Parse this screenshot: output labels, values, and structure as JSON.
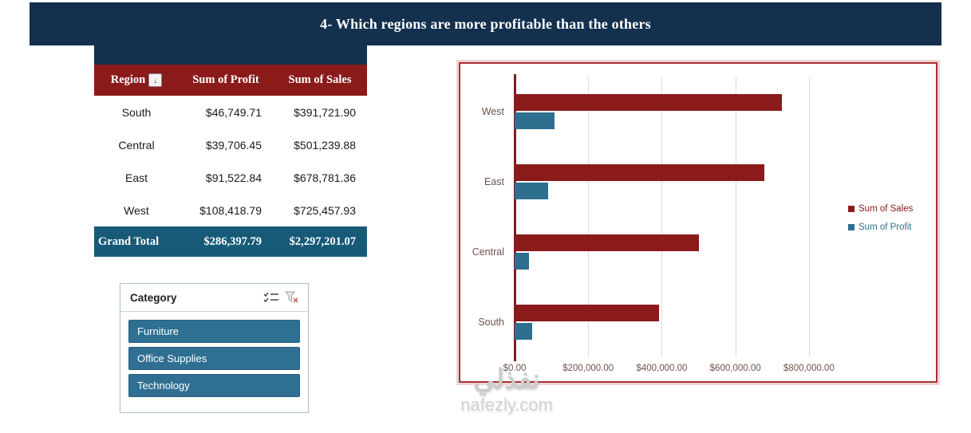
{
  "header": {
    "title": "4- Which regions are more profitable than the others"
  },
  "table": {
    "columns": [
      "Region",
      "Sum of Profit",
      "Sum of Sales"
    ],
    "rows": [
      {
        "region": "South",
        "profit": "$46,749.71",
        "sales": "$391,721.90"
      },
      {
        "region": "Central",
        "profit": "$39,706.45",
        "sales": "$501,239.88"
      },
      {
        "region": "East",
        "profit": "$91,522.84",
        "sales": "$678,781.36"
      },
      {
        "region": "West",
        "profit": "$108,418.79",
        "sales": "$725,457.93"
      }
    ],
    "grand_total": {
      "label": "Grand Total",
      "profit": "$286,397.79",
      "sales": "$2,297,201.07"
    }
  },
  "slicer": {
    "title": "Category",
    "items": [
      "Furniture",
      "Office Supplies",
      "Technology"
    ],
    "selected": [
      "Furniture",
      "Office Supplies",
      "Technology"
    ],
    "item_color": "#2f6f92"
  },
  "chart_data": {
    "type": "bar",
    "orientation": "horizontal",
    "categories": [
      "West",
      "East",
      "Central",
      "South"
    ],
    "series": [
      {
        "name": "Sum of Sales",
        "color": "#8b1a1a",
        "values": [
          725457.93,
          678781.36,
          501239.88,
          391721.9
        ]
      },
      {
        "name": "Sum of Profit",
        "color": "#2e6e8e",
        "values": [
          108418.79,
          91522.84,
          39706.45,
          46749.71
        ]
      }
    ],
    "x_ticks": [
      "$0.00",
      "$200,000.00",
      "$400,000.00",
      "$600,000.00",
      "$800,000.00"
    ],
    "tick_values": [
      0,
      200000,
      400000,
      600000,
      800000
    ],
    "xlim": [
      0,
      900000
    ],
    "grid": true,
    "legend_position": "right"
  },
  "colors": {
    "header_bg": "#13304e",
    "table_header_bg": "#8b1a1a",
    "grand_total_bg": "#175a78",
    "chart_border": "#a93131"
  },
  "watermark": {
    "text_arabic": "نفذلي",
    "text_latin": "nafezly.com"
  }
}
